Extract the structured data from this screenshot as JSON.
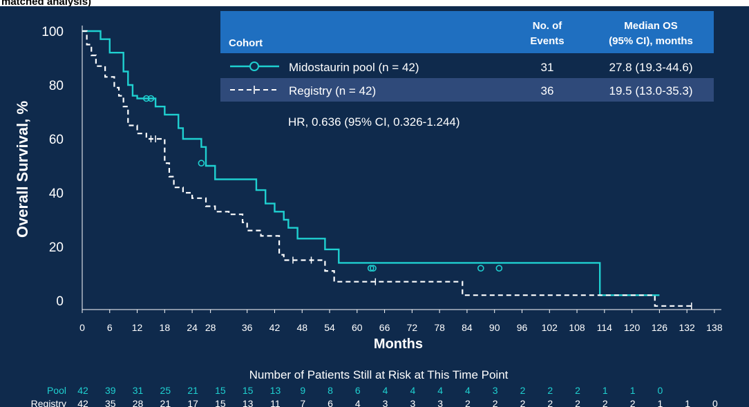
{
  "caption": "matched analysis)",
  "colors": {
    "background": "#0f2a4c",
    "pool_line": "#1fd0d0",
    "registry_line": "#ffffff",
    "legend_header": "#1f6fc0",
    "legend_row_alt": "#2f4a7a",
    "risk_pool_text": "#1fd0d0",
    "axis_text": "#ffffff"
  },
  "chart_data": {
    "type": "line",
    "subtype": "kaplan-meier",
    "xlabel": "Months",
    "ylabel": "Overall Survival, %",
    "xlim": [
      0,
      138
    ],
    "ylim": [
      0,
      100
    ],
    "x_ticks": [
      0,
      6,
      12,
      18,
      24,
      28,
      36,
      42,
      48,
      54,
      60,
      66,
      72,
      78,
      84,
      90,
      96,
      102,
      108,
      114,
      120,
      126,
      132,
      138
    ],
    "y_ticks": [
      0,
      20,
      40,
      60,
      80,
      100
    ],
    "grid": false,
    "series": [
      {
        "name": "Midostaurin pool (n = 42)",
        "style": "solid",
        "color": "#1fd0d0",
        "censor_marker": "circle",
        "x": [
          0,
          4,
          6,
          9,
          10,
          11,
          12,
          16,
          18,
          21,
          22,
          26,
          27,
          29,
          38,
          40,
          42,
          44,
          45,
          47,
          53,
          56,
          113,
          126
        ],
        "y": [
          100,
          97,
          92,
          85,
          80,
          76,
          75,
          72,
          69,
          64,
          60,
          57,
          50,
          45,
          41,
          36,
          33,
          30,
          27,
          23,
          19,
          14,
          2,
          2
        ],
        "censored": [
          [
            14,
            75
          ],
          [
            15,
            75
          ],
          [
            26,
            51
          ],
          [
            63,
            12
          ],
          [
            63.5,
            12
          ],
          [
            87,
            12
          ],
          [
            91,
            12
          ]
        ]
      },
      {
        "name": "Registry (n = 42)",
        "style": "dashed",
        "color": "#ffffff",
        "censor_marker": "plus",
        "x": [
          0,
          1,
          2,
          3,
          5,
          7,
          8,
          9,
          10,
          12,
          14,
          18,
          19,
          20,
          22,
          24,
          27,
          29,
          32,
          35,
          36,
          39,
          43,
          44,
          53,
          55,
          83,
          125,
          133
        ],
        "y": [
          100,
          95,
          91,
          87,
          83,
          79,
          76,
          72,
          65,
          62,
          60,
          51,
          46,
          42,
          40,
          38,
          35,
          33,
          32,
          29,
          26,
          24,
          17,
          15,
          11,
          7,
          2,
          -2,
          -2
        ],
        "censored": [
          [
            15,
            60
          ],
          [
            16,
            60
          ],
          [
            46,
            15
          ],
          [
            50,
            15
          ],
          [
            64,
            7
          ],
          [
            133,
            -2
          ]
        ]
      }
    ],
    "legend": {
      "placement": "top-right",
      "headers": [
        "Cohort",
        "No. of Events",
        "Median OS (95% CI), months"
      ],
      "rows": [
        {
          "label": "Midostaurin pool (n = 42)",
          "events": "31",
          "median": "27.8 (19.3-44.6)"
        },
        {
          "label": "Registry (n = 42)",
          "events": "36",
          "median": "19.5 (13.0-35.3)"
        }
      ]
    },
    "annotations": [
      "HR, 0.636 (95% CI, 0.326-1.244)"
    ],
    "risk_table": {
      "title": "Number of Patients Still at Risk at This Time Point",
      "rows": [
        {
          "label": "Pool",
          "values": [
            "42",
            "39",
            "31",
            "25",
            "21",
            "15",
            "15",
            "13",
            "9",
            "8",
            "6",
            "4",
            "4",
            "4",
            "4",
            "3",
            "2",
            "2",
            "2",
            "1",
            "1",
            "0"
          ]
        },
        {
          "label": "Registry",
          "values": [
            "42",
            "35",
            "28",
            "21",
            "17",
            "15",
            "13",
            "11",
            "7",
            "6",
            "4",
            "3",
            "3",
            "3",
            "2",
            "2",
            "2",
            "2",
            "2",
            "2",
            "2",
            "1",
            "1",
            "0"
          ]
        }
      ]
    }
  }
}
